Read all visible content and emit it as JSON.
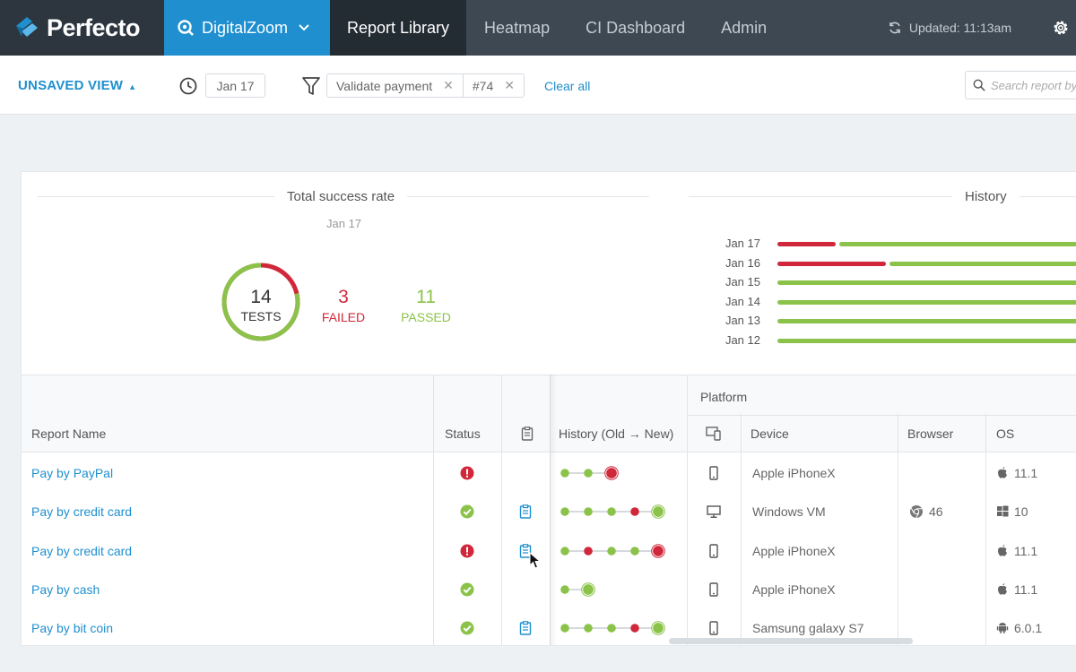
{
  "nav": {
    "brand": "Perfecto",
    "project": "DigitalZoom",
    "tabs": [
      "Report Library",
      "Heatmap",
      "CI Dashboard",
      "Admin"
    ],
    "updated": "Updated: 11:13am"
  },
  "filters": {
    "view_label": "UNSAVED VIEW",
    "date": "Jan 17",
    "chips": [
      "Validate payment",
      "#74"
    ],
    "clear_all": "Clear all",
    "search_placeholder": "Search report by name"
  },
  "summary": {
    "title": "Total success rate",
    "date": "Jan 17",
    "total": "14",
    "total_label": "TESTS",
    "failed": "3",
    "failed_label": "FAILED",
    "passed": "11",
    "passed_label": "PASSED",
    "pass_fraction": 0.786
  },
  "history": {
    "title": "History",
    "rows": [
      {
        "date": "Jan 17",
        "fail_fraction": 0.2
      },
      {
        "date": "Jan 16",
        "fail_fraction": 0.36
      },
      {
        "date": "Jan 15",
        "fail_fraction": 0
      },
      {
        "date": "Jan 14",
        "fail_fraction": 0
      },
      {
        "date": "Jan 13",
        "fail_fraction": 0
      },
      {
        "date": "Jan 12",
        "fail_fraction": 0
      }
    ]
  },
  "table": {
    "headers": {
      "report_name": "Report Name",
      "status": "Status",
      "history": "History (Old → New)",
      "platform": "Platform",
      "device": "Device",
      "browser": "Browser",
      "os": "OS"
    },
    "rows": [
      {
        "name": "Pay by PayPal",
        "status": "failed",
        "has_report": false,
        "history": [
          "pass",
          "pass",
          "fail"
        ],
        "device_type": "phone",
        "device": "Apple iPhoneX",
        "browser": "",
        "os_icon": "apple",
        "os": "11.1"
      },
      {
        "name": "Pay by credit card",
        "status": "passed",
        "has_report": true,
        "history": [
          "pass",
          "pass",
          "pass",
          "fail",
          "pass"
        ],
        "device_type": "desktop",
        "device": "Windows VM",
        "browser": "46",
        "os_icon": "windows",
        "os": "10"
      },
      {
        "name": "Pay by credit card",
        "status": "failed",
        "has_report": true,
        "history": [
          "pass",
          "fail",
          "pass",
          "pass",
          "fail"
        ],
        "device_type": "phone",
        "device": "Apple iPhoneX",
        "browser": "",
        "os_icon": "apple",
        "os": "11.1"
      },
      {
        "name": "Pay by cash",
        "status": "passed",
        "has_report": false,
        "history": [
          "pass",
          "pass"
        ],
        "device_type": "phone",
        "device": "Apple iPhoneX",
        "browser": "",
        "os_icon": "apple",
        "os": "11.1"
      },
      {
        "name": "Pay by bit coin",
        "status": "passed",
        "has_report": true,
        "history": [
          "pass",
          "pass",
          "pass",
          "fail",
          "pass"
        ],
        "device_type": "phone",
        "device": "Samsung galaxy S7",
        "browser": "",
        "os_icon": "android",
        "os": "6.0.1"
      }
    ]
  },
  "colors": {
    "accent": "#1f8fcf",
    "pass": "#8bc34a",
    "fail": "#d0283a"
  }
}
